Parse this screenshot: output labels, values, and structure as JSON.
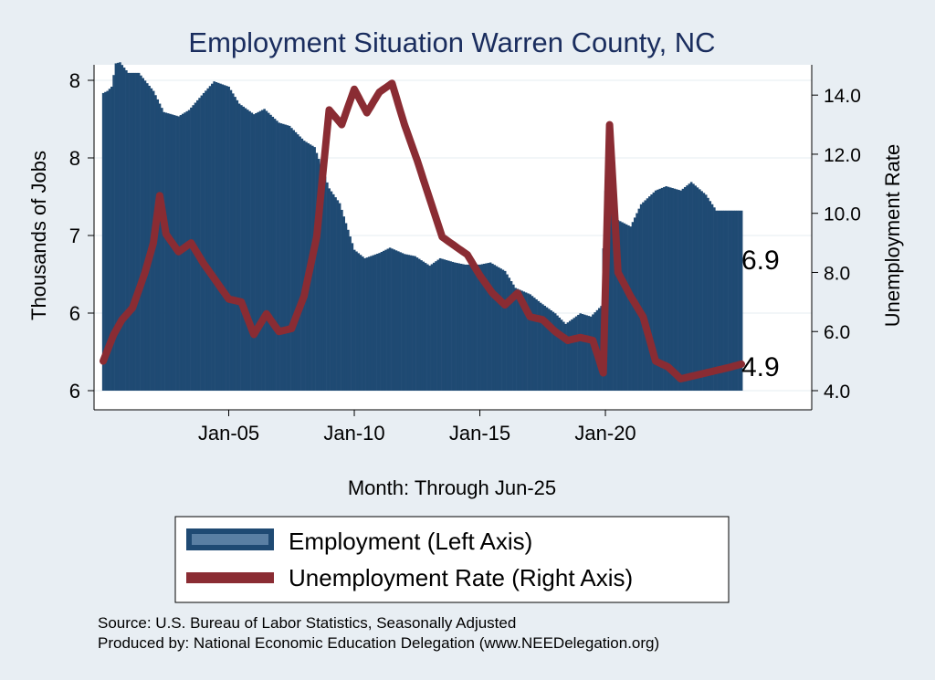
{
  "chart_data": {
    "type": "bar+line",
    "title": "Employment Situation Warren  County, NC",
    "xlabel": "Month: Through Jun-25",
    "ylabel_left": "Thousands of Jobs",
    "ylabel_right": "Unemployment Rate",
    "x_ticks": [
      "Jan-05",
      "Jan-10",
      "Jan-15",
      "Jan-20"
    ],
    "y_ticks_left": [
      "6",
      "6",
      "7",
      "8",
      "8"
    ],
    "y_ticks_right": [
      "4.0",
      "6.0",
      "8.0",
      "10.0",
      "12.0",
      "14.0"
    ],
    "end_labels": {
      "employment": "6.9",
      "unemployment": "4.9"
    },
    "legend_placement": "bottom",
    "grid": "horizontal",
    "colors": {
      "employment": "#1f4a73",
      "unemployment": "#8a2c33",
      "background": "#e8eef3",
      "plot_bg": "#ffffff",
      "title": "#1a2d5e"
    },
    "series": [
      {
        "name": "Employment (Left Axis)",
        "axis": "left",
        "kind": "bar",
        "points": [
          [
            "2000-01",
            7.96
          ],
          [
            "2000-03",
            7.98
          ],
          [
            "2000-05",
            8.02
          ],
          [
            "2000-07",
            8.24
          ],
          [
            "2000-09",
            8.25
          ],
          [
            "2001-01",
            8.15
          ],
          [
            "2001-06",
            8.15
          ],
          [
            "2002-01",
            7.98
          ],
          [
            "2002-06",
            7.78
          ],
          [
            "2003-01",
            7.74
          ],
          [
            "2003-06",
            7.8
          ],
          [
            "2004-01",
            7.96
          ],
          [
            "2004-06",
            8.07
          ],
          [
            "2005-01",
            8.02
          ],
          [
            "2005-06",
            7.86
          ],
          [
            "2006-01",
            7.76
          ],
          [
            "2006-06",
            7.81
          ],
          [
            "2007-01",
            7.68
          ],
          [
            "2007-06",
            7.65
          ],
          [
            "2008-01",
            7.51
          ],
          [
            "2008-06",
            7.45
          ],
          [
            "2009-01",
            7.06
          ],
          [
            "2009-06",
            6.92
          ],
          [
            "2010-01",
            6.48
          ],
          [
            "2010-06",
            6.4
          ],
          [
            "2011-01",
            6.45
          ],
          [
            "2011-06",
            6.5
          ],
          [
            "2012-01",
            6.44
          ],
          [
            "2012-06",
            6.42
          ],
          [
            "2013-01",
            6.33
          ],
          [
            "2013-06",
            6.4
          ],
          [
            "2014-01",
            6.36
          ],
          [
            "2014-06",
            6.34
          ],
          [
            "2015-01",
            6.34
          ],
          [
            "2015-06",
            6.36
          ],
          [
            "2016-01",
            6.28
          ],
          [
            "2016-06",
            6.12
          ],
          [
            "2017-01",
            6.06
          ],
          [
            "2017-06",
            5.98
          ],
          [
            "2018-01",
            5.88
          ],
          [
            "2018-06",
            5.78
          ],
          [
            "2019-01",
            5.88
          ],
          [
            "2019-06",
            5.85
          ],
          [
            "2019-11",
            5.95
          ],
          [
            "2020-02",
            7.58
          ],
          [
            "2020-05",
            6.78
          ],
          [
            "2021-01",
            6.7
          ],
          [
            "2021-06",
            6.91
          ],
          [
            "2022-01",
            7.04
          ],
          [
            "2022-06",
            7.08
          ],
          [
            "2023-01",
            7.04
          ],
          [
            "2023-06",
            7.12
          ],
          [
            "2024-01",
            7.0
          ],
          [
            "2024-06",
            6.85
          ],
          [
            "2025-06",
            6.85
          ]
        ]
      },
      {
        "name": "Unemployment Rate (Right Axis)",
        "axis": "right",
        "kind": "line",
        "points": [
          [
            "2000-01",
            5.0
          ],
          [
            "2000-06",
            5.9
          ],
          [
            "2000-10",
            6.4
          ],
          [
            "2001-03",
            6.8
          ],
          [
            "2001-09",
            8.0
          ],
          [
            "2002-01",
            9.0
          ],
          [
            "2002-04",
            10.6
          ],
          [
            "2002-07",
            9.3
          ],
          [
            "2003-01",
            8.7
          ],
          [
            "2003-07",
            9.0
          ],
          [
            "2004-01",
            8.3
          ],
          [
            "2004-07",
            7.7
          ],
          [
            "2005-01",
            7.1
          ],
          [
            "2005-07",
            7.0
          ],
          [
            "2006-01",
            5.9
          ],
          [
            "2006-07",
            6.6
          ],
          [
            "2007-01",
            6.0
          ],
          [
            "2007-07",
            6.1
          ],
          [
            "2008-01",
            7.2
          ],
          [
            "2008-07",
            9.2
          ],
          [
            "2009-01",
            13.5
          ],
          [
            "2009-07",
            13.0
          ],
          [
            "2010-01",
            14.2
          ],
          [
            "2010-07",
            13.4
          ],
          [
            "2011-01",
            14.1
          ],
          [
            "2011-07",
            14.4
          ],
          [
            "2012-01",
            13.0
          ],
          [
            "2012-07",
            11.8
          ],
          [
            "2013-01",
            10.5
          ],
          [
            "2013-07",
            9.2
          ],
          [
            "2014-01",
            8.9
          ],
          [
            "2014-07",
            8.6
          ],
          [
            "2015-01",
            7.9
          ],
          [
            "2015-07",
            7.3
          ],
          [
            "2016-01",
            6.9
          ],
          [
            "2016-07",
            7.3
          ],
          [
            "2017-01",
            6.5
          ],
          [
            "2017-07",
            6.4
          ],
          [
            "2018-01",
            6.0
          ],
          [
            "2018-07",
            5.7
          ],
          [
            "2019-01",
            5.8
          ],
          [
            "2019-07",
            5.7
          ],
          [
            "2019-12",
            4.6
          ],
          [
            "2020-03",
            13.0
          ],
          [
            "2020-07",
            8.0
          ],
          [
            "2021-01",
            7.2
          ],
          [
            "2021-07",
            6.5
          ],
          [
            "2022-01",
            5.0
          ],
          [
            "2022-07",
            4.8
          ],
          [
            "2023-01",
            4.4
          ],
          [
            "2023-07",
            4.5
          ],
          [
            "2024-01",
            4.6
          ],
          [
            "2024-07",
            4.7
          ],
          [
            "2025-01",
            4.8
          ],
          [
            "2025-06",
            4.9
          ]
        ]
      }
    ],
    "x_range": [
      "2000-01",
      "2025-06"
    ],
    "ylim_left": [
      5.15,
      8.08
    ],
    "ylim_right": [
      4.0,
      14.5
    ]
  },
  "legend": {
    "items": [
      {
        "label": "Employment (Left Axis)",
        "color": "#1f4a73",
        "kind": "bar"
      },
      {
        "label": "Unemployment Rate (Right Axis)",
        "color": "#8a2c33",
        "kind": "line"
      }
    ]
  },
  "notes": [
    "Source: U.S. Bureau of Labor Statistics, Seasonally Adjusted",
    "Produced by: National Economic Education Delegation (www.NEEDelegation.org)"
  ]
}
